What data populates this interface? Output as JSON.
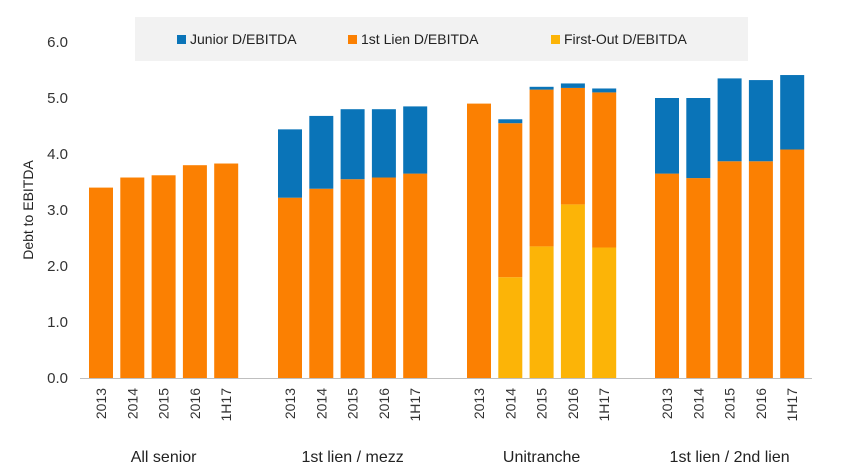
{
  "chart_data": {
    "type": "stacked-bar",
    "ylabel": "Debt to EBITDA",
    "ylim": [
      0,
      6
    ],
    "yticks": [
      "0.0",
      "1.0",
      "2.0",
      "3.0",
      "4.0",
      "5.0",
      "6.0"
    ],
    "legend": {
      "position": "top",
      "items": [
        {
          "name": "Junior D/EBITDA",
          "color": "#0a74b8"
        },
        {
          "name": "1st Lien D/EBITDA",
          "color": "#fb8002"
        },
        {
          "name": "First-Out D/EBITDA",
          "color": "#fcb407"
        }
      ]
    },
    "groups": [
      {
        "name": "All senior",
        "categories": [
          "2013",
          "2014",
          "2015",
          "2016",
          "1H17"
        ],
        "first_out": [
          0,
          0,
          0,
          0,
          0
        ],
        "first_lien": [
          3.4,
          3.58,
          3.62,
          3.8,
          3.83
        ],
        "junior": [
          0,
          0,
          0,
          0,
          0
        ]
      },
      {
        "name": "1st lien / mezz",
        "categories": [
          "2013",
          "2014",
          "2015",
          "2016",
          "1H17"
        ],
        "first_out": [
          0,
          0,
          0,
          0,
          0
        ],
        "first_lien": [
          3.22,
          3.38,
          3.55,
          3.58,
          3.65
        ],
        "junior": [
          1.22,
          1.3,
          1.25,
          1.22,
          1.2
        ]
      },
      {
        "name": "Unitranche",
        "categories": [
          "2013",
          "2014",
          "2015",
          "2016",
          "1H17"
        ],
        "first_out": [
          0,
          1.8,
          2.35,
          3.1,
          2.33
        ],
        "first_lien": [
          4.9,
          2.75,
          2.8,
          2.08,
          2.77
        ],
        "junior": [
          0,
          0.07,
          0.05,
          0.08,
          0.07
        ]
      },
      {
        "name": "1st lien / 2nd lien",
        "categories": [
          "2013",
          "2014",
          "2015",
          "2016",
          "1H17"
        ],
        "first_out": [
          0,
          0,
          0,
          0,
          0
        ],
        "first_lien": [
          3.65,
          3.57,
          3.87,
          3.87,
          4.08
        ],
        "junior": [
          1.35,
          1.43,
          1.48,
          1.45,
          1.33
        ]
      }
    ]
  }
}
